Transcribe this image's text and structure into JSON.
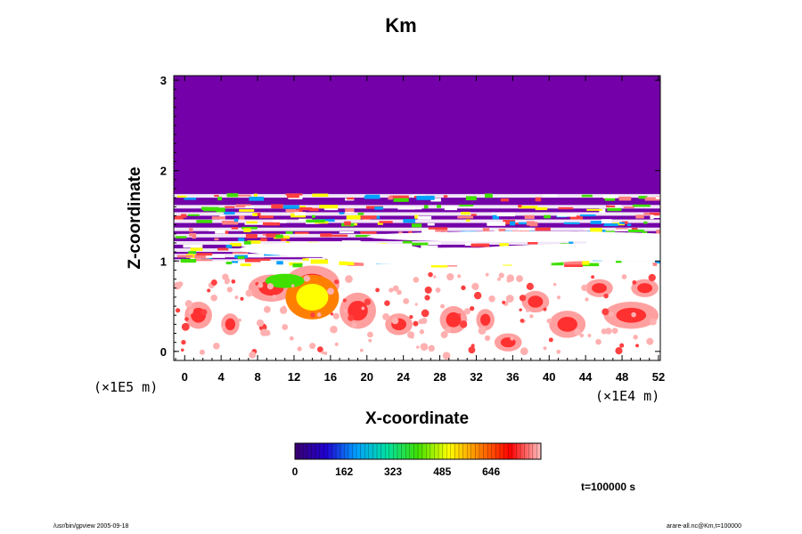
{
  "chart_data": {
    "type": "heatmap",
    "title": "Km",
    "xlabel": "X-coordinate",
    "ylabel": "Z-coordinate",
    "x_unit": "(×1E4 m)",
    "y_unit": "(×1E5 m)",
    "xlim": [
      -1.2,
      52.2
    ],
    "ylim": [
      -0.1,
      3.05
    ],
    "x_ticks": [
      0,
      4,
      8,
      12,
      16,
      20,
      24,
      28,
      32,
      36,
      40,
      44,
      48,
      52
    ],
    "y_ticks": [
      0,
      1,
      2,
      3
    ],
    "colorbar": {
      "min": 0,
      "max": 810,
      "tick_values": [
        0,
        162,
        323,
        485,
        646
      ],
      "colormap": [
        "#3a006e",
        "#2000d0",
        "#00a0ff",
        "#00e0a0",
        "#40e000",
        "#ffff00",
        "#ff8000",
        "#ff0000",
        "#ffc0c0"
      ]
    },
    "time_label": "t=100000 s",
    "regions": [
      {
        "z_range": [
          1.75,
          3.05
        ],
        "value": 0,
        "color": "#7300a8"
      },
      {
        "z_range": [
          1.0,
          1.75
        ],
        "value": "layered bands",
        "color": "#7300a8"
      },
      {
        "z_range": [
          -0.1,
          0.85
        ],
        "value": "turbulent patches",
        "color": "#ff8080"
      }
    ]
  },
  "footer": {
    "left": "/usr/bin/gpview 2005-09-18",
    "right": "arare-all.nc@Km,t=100000"
  }
}
